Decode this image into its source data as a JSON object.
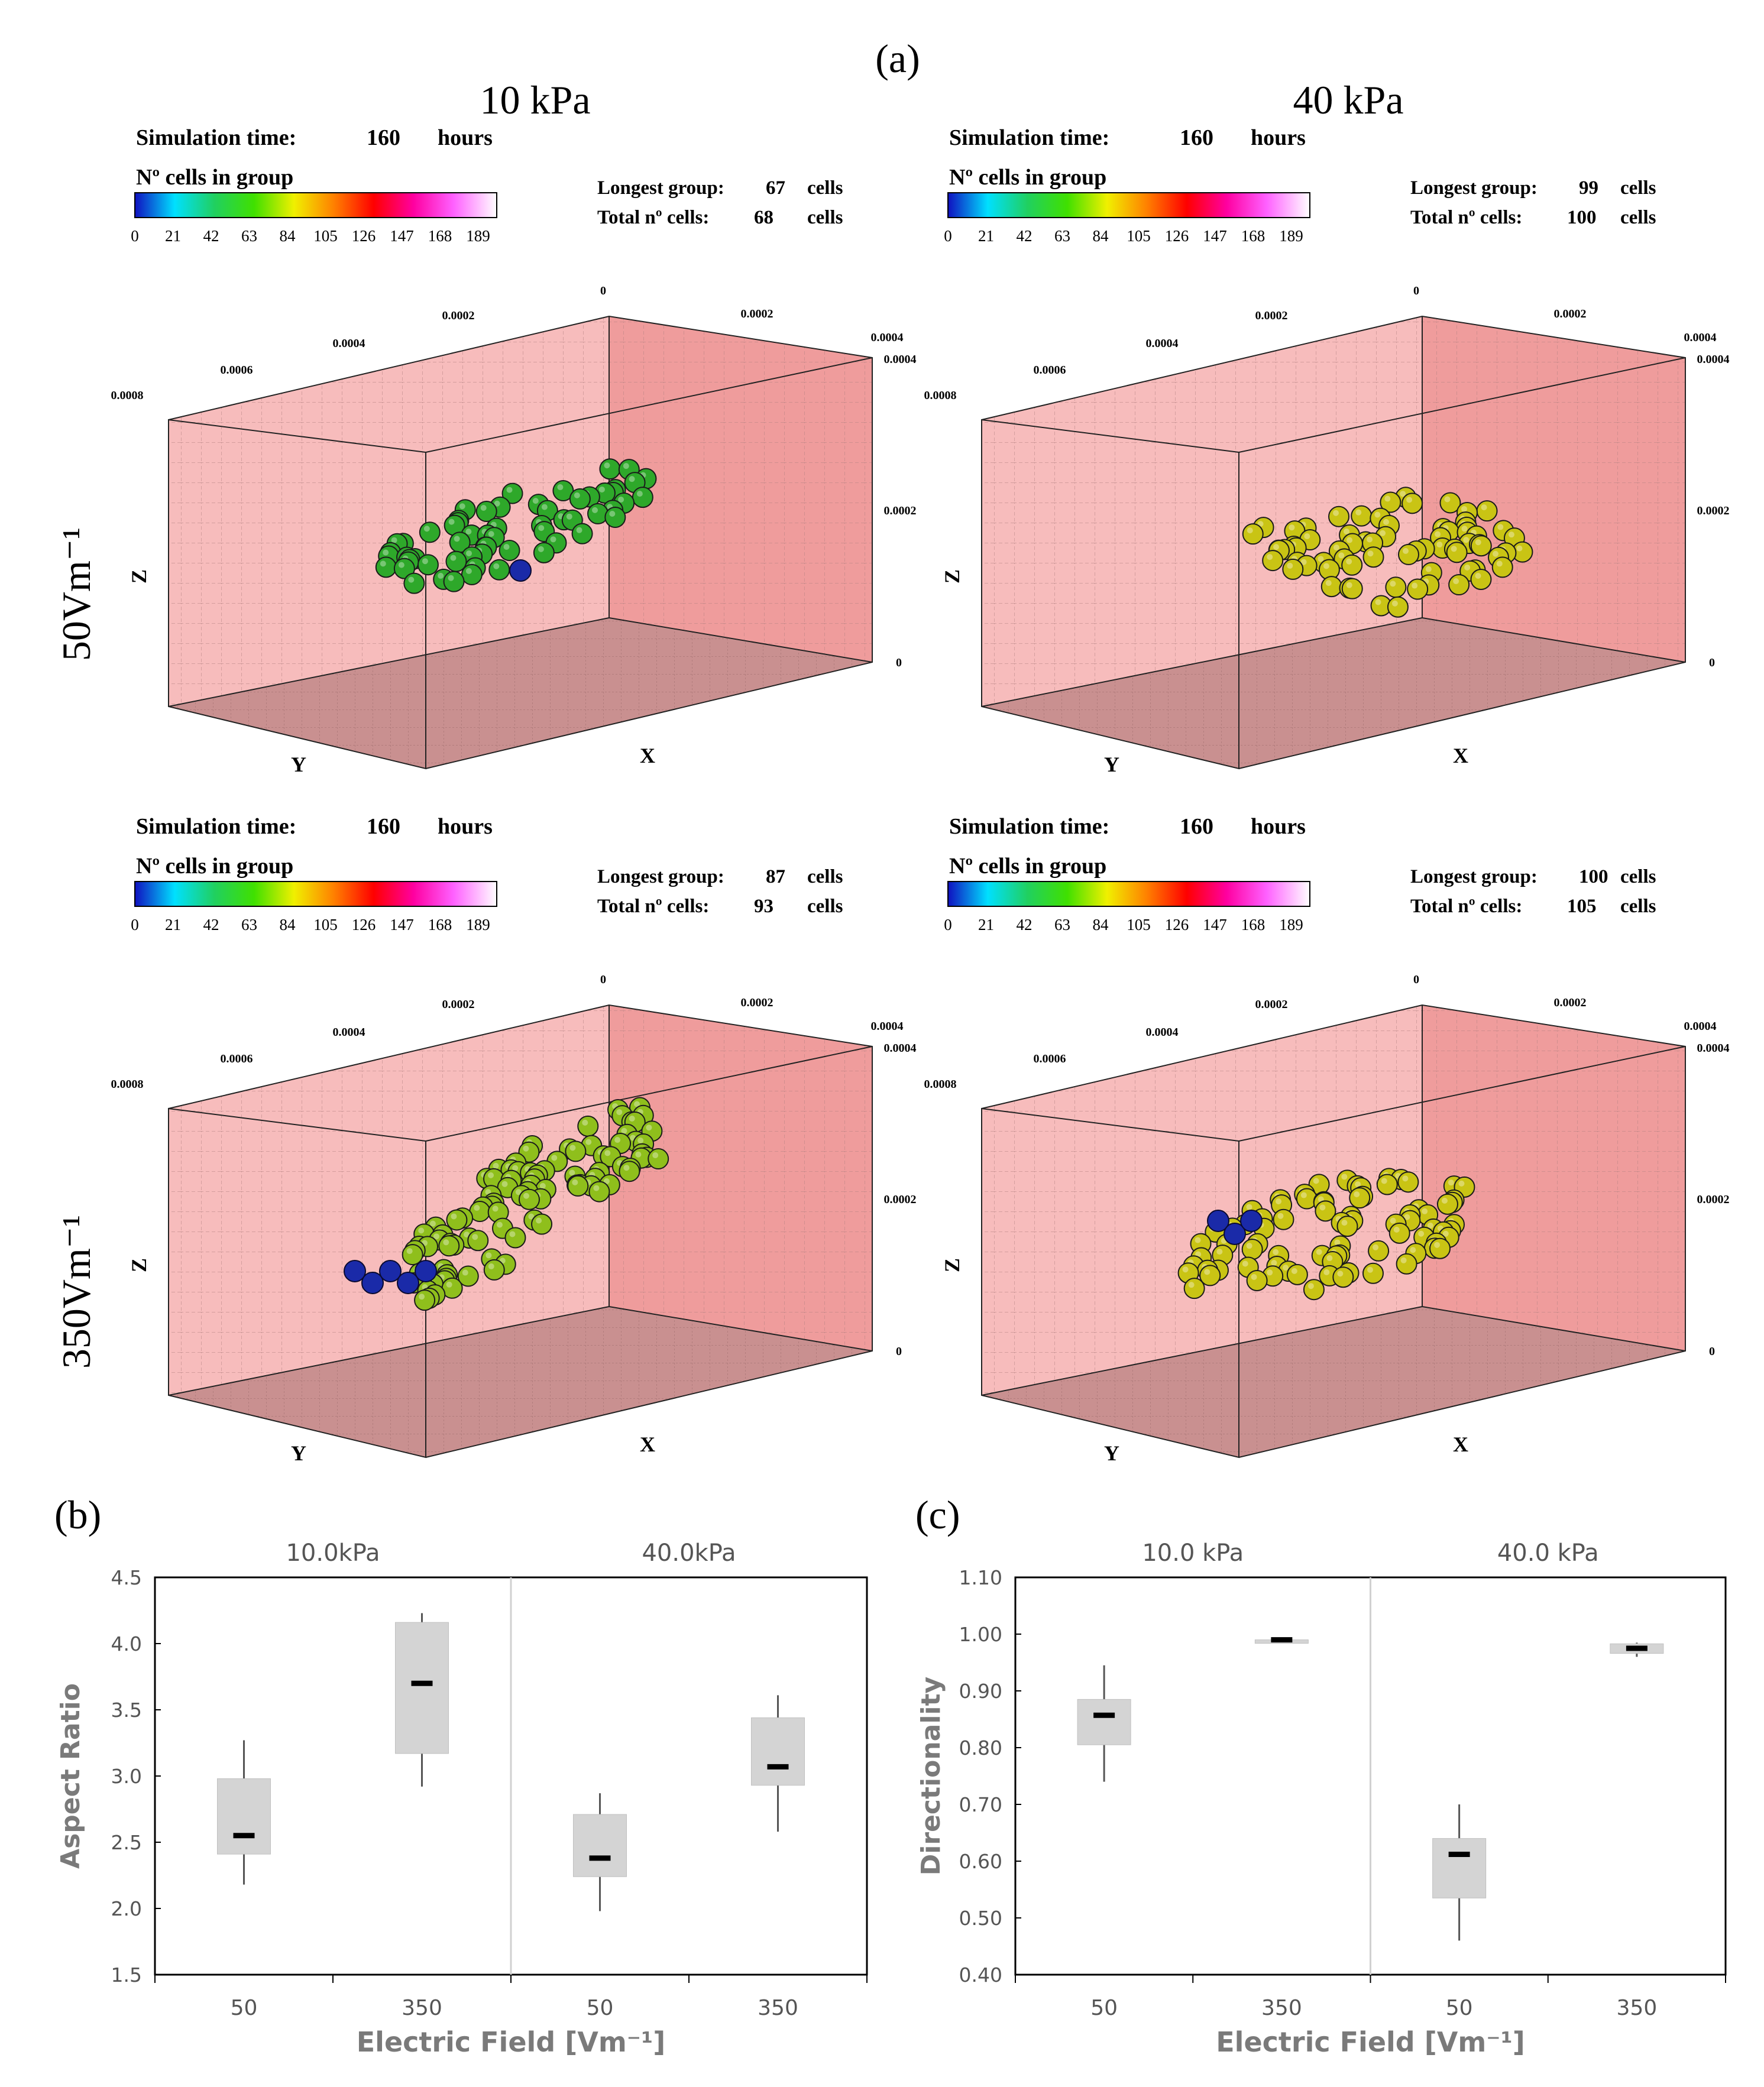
{
  "figure": {
    "label_a": "(a)",
    "label_b": "(b)",
    "label_c": "(c)",
    "col_header_left": "10 kPa",
    "col_header_right": "40 kPa",
    "row_label_top": "50Vm⁻¹",
    "row_label_bottom": "350Vm⁻¹"
  },
  "panels": [
    {
      "sim_label": "Simulation time:",
      "sim_value": "160",
      "sim_unit": "hours",
      "cb_title": "Nº cells in group",
      "longest_label": "Longest group:",
      "longest_value": "67",
      "longest_unit": "cells",
      "total_label": "Total nº cells:",
      "total_value": "68",
      "total_unit": "cells",
      "cluster_color": "#2ea82a",
      "cluster_shape": "left-low-right-high",
      "blue_cells": 1
    },
    {
      "sim_label": "Simulation time:",
      "sim_value": "160",
      "sim_unit": "hours",
      "cb_title": "Nº cells in group",
      "longest_label": "Longest group:",
      "longest_value": "99",
      "longest_unit": "cells",
      "total_label": "Total nº cells:",
      "total_value": "100",
      "total_unit": "cells",
      "cluster_color": "#c9c414",
      "cluster_shape": "flat-wide",
      "blue_cells": 0
    },
    {
      "sim_label": "Simulation time:",
      "sim_value": "160",
      "sim_unit": "hours",
      "cb_title": "Nº cells in group",
      "longest_label": "Longest group:",
      "longest_value": "87",
      "longest_unit": "cells",
      "total_label": "Total nº cells:",
      "total_value": "93",
      "total_unit": "cells",
      "cluster_color": "#8fbf1c",
      "cluster_shape": "diagonal-long",
      "blue_cells": 5
    },
    {
      "sim_label": "Simulation time:",
      "sim_value": "160",
      "sim_unit": "hours",
      "cb_title": "Nº cells in group",
      "longest_label": "Longest group:",
      "longest_value": "100",
      "longest_unit": "cells",
      "total_label": "Total nº cells:",
      "total_value": "105",
      "total_unit": "cells",
      "cluster_color": "#c9c414",
      "cluster_shape": "flat-wide-low",
      "blue_cells": 3
    }
  ],
  "colorbar": {
    "ticks": [
      "0",
      "21",
      "42",
      "63",
      "84",
      "105",
      "126",
      "147",
      "168",
      "189"
    ],
    "stops": [
      "#1010c0",
      "#00e0ff",
      "#20d060",
      "#40e000",
      "#f0f000",
      "#ff8000",
      "#ff0000",
      "#ff00a0",
      "#ff60ff",
      "#ffffff"
    ]
  },
  "axes3d": {
    "y_ticks": [
      "0.0008",
      "0.0006",
      "0.0004",
      "0.0002",
      "0"
    ],
    "x_ticks": [
      "0.0002",
      "0.0004"
    ],
    "z_ticks": [
      "0.0004",
      "0.0002",
      "0"
    ],
    "x_label": "X",
    "y_label": "Y",
    "z_label": "Z"
  },
  "chart_data": [
    {
      "type": "box",
      "title": "",
      "group_labels": [
        "10.0kPa",
        "40.0kPa"
      ],
      "categories": [
        "50",
        "350",
        "50",
        "350"
      ],
      "xlabel": "Electric Field [Vm⁻¹]",
      "ylabel": "Aspect Ratio",
      "ylim": [
        1.5,
        4.5
      ],
      "yticks": [
        "1.5",
        "2.0",
        "2.5",
        "3.0",
        "3.5",
        "4.0",
        "4.5"
      ],
      "boxes": [
        {
          "min": 2.18,
          "q1": 2.41,
          "median": 2.55,
          "q3": 2.98,
          "max": 3.27
        },
        {
          "min": 2.92,
          "q1": 3.17,
          "median": 3.7,
          "q3": 4.16,
          "max": 4.23
        },
        {
          "min": 1.98,
          "q1": 2.24,
          "median": 2.38,
          "q3": 2.71,
          "max": 2.87
        },
        {
          "min": 2.58,
          "q1": 2.93,
          "median": 3.07,
          "q3": 3.44,
          "max": 3.61
        }
      ]
    },
    {
      "type": "box",
      "title": "",
      "group_labels": [
        "10.0 kPa",
        "40.0 kPa"
      ],
      "categories": [
        "50",
        "350",
        "50",
        "350"
      ],
      "xlabel": "Electric Field [Vm⁻¹]",
      "ylabel": "Directionality",
      "ylim": [
        0.4,
        1.1
      ],
      "yticks": [
        "0.40",
        "0.50",
        "0.60",
        "0.70",
        "0.80",
        "0.90",
        "1.00",
        "1.10"
      ],
      "boxes": [
        {
          "min": 0.74,
          "q1": 0.805,
          "median": 0.857,
          "q3": 0.885,
          "max": 0.945
        },
        {
          "min": 0.987,
          "q1": 0.987,
          "median": 0.99,
          "q3": 0.99,
          "max": 0.992
        },
        {
          "min": 0.46,
          "q1": 0.535,
          "median": 0.612,
          "q3": 0.64,
          "max": 0.7
        },
        {
          "min": 0.96,
          "q1": 0.966,
          "median": 0.975,
          "q3": 0.983,
          "max": 0.985
        }
      ]
    }
  ]
}
